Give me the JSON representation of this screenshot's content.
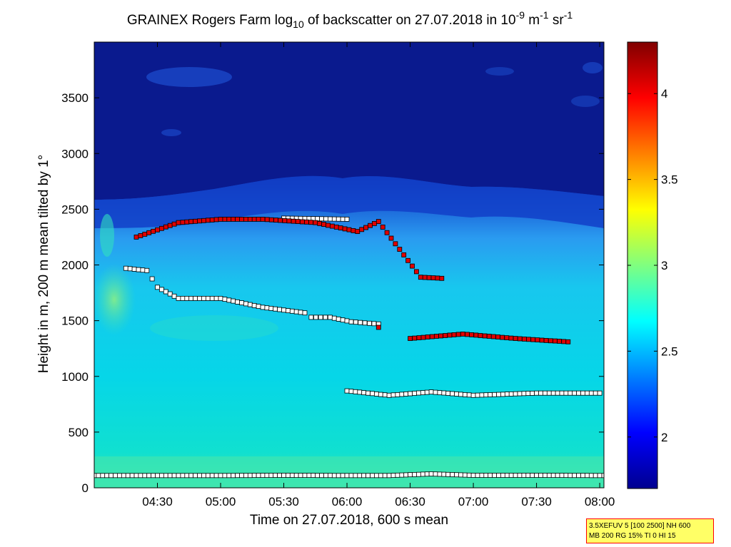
{
  "chart_data": {
    "type": "heatmap",
    "title": {
      "prefix": "GRAINEX Rogers Farm log",
      "log_base": "10",
      "middle": " of backscatter on 27.07.2018 in 10",
      "exp1": "-9",
      "unit1": " m",
      "exp2": "-1",
      "unit2": " sr",
      "exp3": "-1"
    },
    "xlabel": "Time on 27.07.2018, 600 s mean",
    "ylabel": "Height in m, 200 m mean tilted by 1°",
    "xlim": [
      "04:00",
      "08:02"
    ],
    "ylim": [
      0,
      4000
    ],
    "x_ticks": [
      "04:30",
      "05:00",
      "05:30",
      "06:00",
      "06:30",
      "07:00",
      "07:30",
      "08:00"
    ],
    "y_ticks": [
      "0",
      "500",
      "1000",
      "1500",
      "2000",
      "2500",
      "3000",
      "3500"
    ],
    "colorbar": {
      "range": [
        1.7,
        4.3
      ],
      "ticks": [
        "2",
        "2.5",
        "3",
        "3.5",
        "4"
      ],
      "colormap": "jet"
    },
    "series": [
      {
        "marker": "white-square",
        "points": [
          [
            "04:00",
            110
          ],
          [
            "04:30",
            110
          ],
          [
            "05:00",
            110
          ],
          [
            "05:30",
            112
          ],
          [
            "06:00",
            110
          ],
          [
            "06:20",
            110
          ],
          [
            "06:40",
            125
          ],
          [
            "07:00",
            112
          ],
          [
            "07:30",
            112
          ],
          [
            "08:02",
            110
          ],
          [
            "04:15",
            1970
          ],
          [
            "04:25",
            1950
          ],
          [
            "04:30",
            1800
          ],
          [
            "04:40",
            1700
          ],
          [
            "05:00",
            1700
          ],
          [
            "05:20",
            1620
          ],
          [
            "05:40",
            1570
          ],
          [
            "05:43",
            1530
          ],
          [
            "05:52",
            1530
          ],
          [
            "06:02",
            1490
          ],
          [
            "06:15",
            1470
          ],
          [
            "06:00",
            870
          ],
          [
            "06:20",
            830
          ],
          [
            "06:40",
            860
          ],
          [
            "07:00",
            830
          ],
          [
            "07:30",
            850
          ],
          [
            "08:00",
            850
          ],
          [
            "05:30",
            2420
          ],
          [
            "06:00",
            2410
          ]
        ]
      },
      {
        "marker": "red-square",
        "points": [
          [
            "04:20",
            2250
          ],
          [
            "04:40",
            2380
          ],
          [
            "05:00",
            2410
          ],
          [
            "05:20",
            2410
          ],
          [
            "05:45",
            2380
          ],
          [
            "06:05",
            2300
          ],
          [
            "06:15",
            2390
          ],
          [
            "06:35",
            1890
          ],
          [
            "06:45",
            1880
          ],
          [
            "06:30",
            1340
          ],
          [
            "06:55",
            1380
          ],
          [
            "07:20",
            1340
          ],
          [
            "07:45",
            1310
          ],
          [
            "06:15",
            1440
          ]
        ]
      }
    ],
    "info_box": [
      "3.5XEFUV 5 [100 2500] NH 600",
      "MB 200 RG 15% TI 0 HI 15"
    ]
  }
}
